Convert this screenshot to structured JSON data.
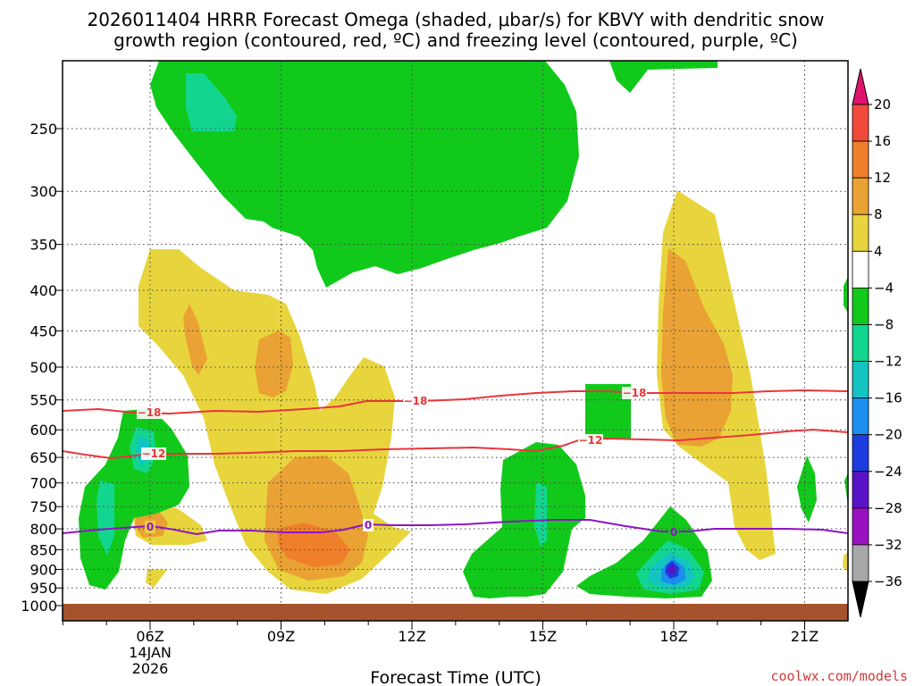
{
  "chart_data": {
    "type": "heatmap",
    "title_lines": [
      "2026011404 HRRR Forecast Omega (shaded, μbar/s) for KBVY with dendritic snow",
      "growth region (contoured, red, ºC) and freezing level (contoured, purple, ºC)"
    ],
    "xlabel": "Forecast Time (UTC)",
    "ylabel": "",
    "x_ticks": [
      "06Z",
      "09Z",
      "12Z",
      "15Z",
      "18Z",
      "21Z"
    ],
    "x_date_label": [
      "14JAN",
      "2026"
    ],
    "y_ticks": [
      250,
      300,
      350,
      400,
      450,
      500,
      550,
      600,
      650,
      700,
      750,
      800,
      850,
      900,
      950,
      1000
    ],
    "y_scale": "log-pressure",
    "grid": true,
    "colorbar": {
      "ticks": [
        "20",
        "16",
        "12",
        "8",
        "4",
        "−4",
        "−8",
        "−12",
        "−16",
        "−20",
        "−24",
        "−28",
        "−32",
        "−36"
      ],
      "colors": [
        "#e0136f",
        "#f24a3a",
        "#f07f2b",
        "#e9a233",
        "#e8d53d",
        "#ffffff",
        "#11c91a",
        "#12d68f",
        "#13c4c2",
        "#1a8ff0",
        "#1d3ce0",
        "#5a12c8",
        "#9a12c0",
        "#a8a8a8",
        "#000000"
      ]
    },
    "contours": [
      {
        "field": "temperature",
        "color": "#e8363b",
        "labels": [
          "−18",
          "−18",
          "−18"
        ]
      },
      {
        "field": "temperature",
        "color": "#e8363b",
        "labels": [
          "−12",
          "−12"
        ]
      },
      {
        "field": "freezing level",
        "color": "#8d14c4",
        "labels": [
          "0",
          "0",
          "0"
        ]
      }
    ],
    "shading": [
      {
        "value": -6,
        "desc": "ascent"
      },
      {
        "value": 6,
        "desc": "descent"
      },
      {
        "value": 10,
        "desc": "descent"
      },
      {
        "value": 14,
        "desc": "descent"
      },
      {
        "value": -10,
        "desc": "ascent"
      },
      {
        "value": -14,
        "desc": "ascent"
      },
      {
        "value": -18,
        "desc": "ascent"
      },
      {
        "value": -22,
        "desc": "ascent"
      }
    ]
  },
  "credit": "coolwx.com/models"
}
